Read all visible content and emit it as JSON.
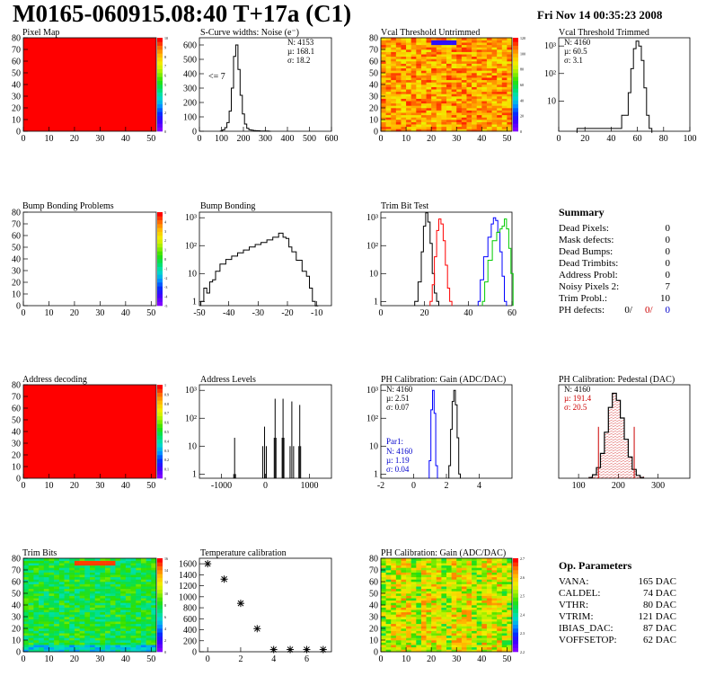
{
  "title": "M0165-060915.08:40 T+17a (C1)",
  "date": "Fri Nov 14 00:35:23 2008",
  "chart_data": [
    {
      "id": "pixel-map",
      "type": "heatmap",
      "title": "Pixel Map",
      "xlim": [
        0,
        52
      ],
      "ylim": [
        0,
        80
      ],
      "xticks": [
        "0",
        "10",
        "20",
        "30",
        "40",
        "50"
      ],
      "yticks": [
        "0",
        "10",
        "20",
        "30",
        "40",
        "50",
        "60",
        "70",
        "80"
      ],
      "zticks": [
        "0",
        "1",
        "2",
        "3",
        "4",
        "5",
        "6",
        "7",
        "8",
        "9",
        "10"
      ],
      "fill": "uniform",
      "fill_color": "#ff0000"
    },
    {
      "id": "scurve",
      "type": "histogram",
      "title": "S-Curve widths: Noise (e⁻)",
      "xlim": [
        0,
        600
      ],
      "ylim": [
        0,
        650
      ],
      "xticks": [
        "0",
        "100",
        "200",
        "300",
        "400",
        "500",
        "600"
      ],
      "yticks": [
        "0",
        "100",
        "200",
        "300",
        "400",
        "500",
        "600"
      ],
      "stats": [
        "N: 4153",
        "µ: 168.1",
        "σ: 18.2"
      ],
      "annotation": "<= 7",
      "x": [
        100,
        110,
        120,
        130,
        140,
        150,
        160,
        170,
        180,
        190,
        200,
        210,
        220,
        230,
        240,
        250,
        260,
        270,
        280,
        290,
        300,
        310,
        320
      ],
      "values": [
        2,
        10,
        25,
        60,
        140,
        300,
        520,
        600,
        430,
        250,
        120,
        50,
        20,
        10,
        8,
        5,
        4,
        3,
        2,
        2,
        1,
        1,
        0
      ]
    },
    {
      "id": "vcal-untrimmed",
      "type": "heatmap",
      "title": "Vcal Threshold Untrimmed",
      "xlim": [
        0,
        52
      ],
      "ylim": [
        0,
        80
      ],
      "xticks": [
        "0",
        "10",
        "20",
        "30",
        "40",
        "50"
      ],
      "yticks": [
        "0",
        "10",
        "20",
        "30",
        "40",
        "50",
        "60",
        "70",
        "80"
      ],
      "zticks": [
        "0",
        "20",
        "40",
        "60",
        "80",
        "100",
        "120"
      ],
      "fill": "noise-hot"
    },
    {
      "id": "vcal-trimmed",
      "type": "histogram",
      "title": "Vcal Threshold Trimmed",
      "xlim": [
        0,
        100
      ],
      "log": true,
      "xticks": [
        "0",
        "20",
        "40",
        "60",
        "80",
        "100"
      ],
      "yticks": [
        "10",
        "10²",
        "10³"
      ],
      "stats": [
        "N: 4160",
        "µ: 60.5",
        "σ: 3.1"
      ],
      "x": [
        15,
        20,
        40,
        44,
        52,
        54,
        56,
        58,
        60,
        62,
        64,
        66,
        68,
        70
      ],
      "values": [
        1,
        1,
        1,
        1,
        3,
        20,
        150,
        800,
        1500,
        1000,
        300,
        30,
        3,
        1
      ]
    },
    {
      "id": "bump-problems",
      "type": "heatmap",
      "title": "Bump Bonding Problems",
      "xlim": [
        0,
        52
      ],
      "ylim": [
        0,
        80
      ],
      "xticks": [
        "0",
        "10",
        "20",
        "30",
        "40",
        "50"
      ],
      "yticks": [
        "0",
        "10",
        "20",
        "30",
        "40",
        "50",
        "60",
        "70",
        "80"
      ],
      "zticks": [
        "-5",
        "-4",
        "-3",
        "-2",
        "-1",
        "0",
        "1",
        "2",
        "3",
        "4",
        "5"
      ],
      "fill": "empty"
    },
    {
      "id": "bump-bonding",
      "type": "histogram",
      "title": "Bump Bonding",
      "xlim": [
        -50,
        -5
      ],
      "log": true,
      "xticks": [
        "-50",
        "-40",
        "-30",
        "-20",
        "-10"
      ],
      "yticks": [
        "1",
        "10",
        "10²",
        "10³"
      ],
      "x": [
        -49,
        -48,
        -47,
        -46,
        -45,
        -44,
        -42,
        -40,
        -38,
        -36,
        -34,
        -32,
        -30,
        -28,
        -26,
        -24,
        -22,
        -21,
        -20,
        -19,
        -18,
        -16,
        -14,
        -13,
        -12,
        -11,
        -10
      ],
      "values": [
        1,
        3,
        2,
        5,
        6,
        12,
        22,
        32,
        42,
        55,
        70,
        90,
        110,
        130,
        160,
        200,
        280,
        200,
        180,
        90,
        60,
        30,
        12,
        8,
        3,
        1,
        0
      ]
    },
    {
      "id": "trim-bit-test",
      "type": "histogram",
      "title": "Trim Bit Test",
      "xlim": [
        0,
        60
      ],
      "log": true,
      "xticks": [
        "0",
        "20",
        "40",
        "60"
      ],
      "yticks": [
        "1",
        "10",
        "10²",
        "10³"
      ],
      "series": [
        {
          "color": "#000000",
          "x": [
            16,
            18,
            19,
            20,
            21,
            22,
            23,
            24,
            25,
            26
          ],
          "values": [
            1,
            5,
            60,
            500,
            1500,
            700,
            120,
            10,
            2,
            1
          ]
        },
        {
          "color": "#ff0000",
          "x": [
            23,
            24,
            25,
            26,
            27,
            28,
            29,
            30,
            31,
            32
          ],
          "values": [
            1,
            4,
            40,
            350,
            900,
            600,
            150,
            20,
            3,
            1
          ]
        },
        {
          "color": "#0000ff",
          "x": [
            45,
            46,
            48,
            50,
            51,
            52,
            53,
            54,
            55,
            56,
            57
          ],
          "values": [
            1,
            6,
            40,
            200,
            600,
            1000,
            800,
            300,
            60,
            8,
            1
          ]
        },
        {
          "color": "#00cc00",
          "x": [
            47,
            48,
            50,
            52,
            54,
            55,
            56,
            57,
            58,
            59,
            60
          ],
          "values": [
            1,
            5,
            30,
            150,
            300,
            400,
            500,
            900,
            400,
            80,
            10
          ]
        }
      ]
    },
    {
      "id": "address-decoding",
      "type": "heatmap",
      "title": "Address decoding",
      "xlim": [
        0,
        52
      ],
      "ylim": [
        0,
        80
      ],
      "xticks": [
        "0",
        "10",
        "20",
        "30",
        "40",
        "50"
      ],
      "yticks": [
        "0",
        "10",
        "20",
        "30",
        "40",
        "50",
        "60",
        "70",
        "80"
      ],
      "zticks": [
        "0",
        "0.1",
        "0.2",
        "0.3",
        "0.4",
        "0.5",
        "0.6",
        "0.7",
        "0.8",
        "0.9",
        "1"
      ],
      "fill": "uniform",
      "fill_color": "#ff0000"
    },
    {
      "id": "address-levels",
      "type": "histogram",
      "title": "Address Levels",
      "xlim": [
        -1500,
        1500
      ],
      "log": true,
      "xticks": [
        "-1000",
        "0",
        "1000"
      ],
      "yticks": [
        "1",
        "10",
        "10²",
        "10³"
      ],
      "x": [
        -720,
        -700,
        -680,
        -60,
        -20,
        20,
        200,
        220,
        240,
        380,
        400,
        420,
        560,
        600,
        640,
        760,
        780,
        800
      ],
      "values": [
        1,
        20,
        1,
        10,
        50,
        10,
        20,
        500,
        20,
        20,
        500,
        20,
        10,
        400,
        10,
        10,
        300,
        10
      ]
    },
    {
      "id": "ph-gain",
      "type": "histogram",
      "title": "PH Calibration: Gain (ADC/DAC)",
      "xlim": [
        -2,
        6
      ],
      "log": true,
      "xticks": [
        "-2",
        "0",
        "2",
        "4"
      ],
      "yticks": [
        "1",
        "10",
        "10²",
        "10³"
      ],
      "stats": [
        "N: 4160",
        "µ: 2.51",
        "σ: 0.07"
      ],
      "stats2_title": "Par1:",
      "stats2": [
        "N: 4160",
        "µ: 1.19",
        "σ: 0.04"
      ],
      "series": [
        {
          "color": "#000000",
          "x": [
            2.2,
            2.3,
            2.4,
            2.5,
            2.6,
            2.7,
            2.8
          ],
          "values": [
            2,
            40,
            400,
            1000,
            300,
            20,
            1
          ]
        },
        {
          "color": "#0000ff",
          "x": [
            1.0,
            1.1,
            1.2,
            1.3,
            1.4
          ],
          "values": [
            3,
            200,
            1000,
            150,
            2
          ]
        }
      ]
    },
    {
      "id": "ph-pedestal",
      "type": "histogram",
      "title": "PH Calibration: Pedestal (DAC)",
      "xlim": [
        50,
        380
      ],
      "xticks": [
        "100",
        "200",
        "300"
      ],
      "stats": [
        "N: 4160",
        "µ: 191.4",
        "σ: 20.5"
      ],
      "fit_limits": [
        150,
        240
      ],
      "x": [
        130,
        140,
        150,
        160,
        170,
        180,
        190,
        200,
        210,
        220,
        230,
        240,
        250,
        260
      ],
      "values": [
        2,
        10,
        30,
        70,
        130,
        200,
        240,
        220,
        170,
        110,
        60,
        25,
        8,
        2
      ]
    },
    {
      "id": "trim-bits",
      "type": "heatmap",
      "title": "Trim Bits",
      "xlim": [
        0,
        52
      ],
      "ylim": [
        0,
        80
      ],
      "xticks": [
        "0",
        "10",
        "20",
        "30",
        "40",
        "50"
      ],
      "yticks": [
        "0",
        "10",
        "20",
        "30",
        "40",
        "50",
        "60",
        "70",
        "80"
      ],
      "zticks": [
        "0",
        "2",
        "4",
        "6",
        "8",
        "10",
        "12",
        "14",
        "16"
      ],
      "fill": "noise-cool"
    },
    {
      "id": "temperature",
      "type": "scatter",
      "title": "Temperature calibration",
      "xlim": [
        -0.5,
        7.5
      ],
      "ylim": [
        0,
        1700
      ],
      "xticks": [
        "0",
        "2",
        "4",
        "6"
      ],
      "yticks": [
        "0",
        "200",
        "400",
        "600",
        "800",
        "1000",
        "1200",
        "1400",
        "1600"
      ],
      "x": [
        0,
        1,
        2,
        3,
        4,
        5,
        6,
        7
      ],
      "values": [
        1600,
        1320,
        880,
        420,
        40,
        40,
        40,
        40
      ]
    },
    {
      "id": "ph-gain-map",
      "type": "heatmap",
      "title": "PH Calibration: Gain (ADC/DAC)",
      "xlim": [
        0,
        52
      ],
      "ylim": [
        0,
        80
      ],
      "xticks": [
        "0",
        "10",
        "20",
        "30",
        "40",
        "50"
      ],
      "yticks": [
        "0",
        "10",
        "20",
        "30",
        "40",
        "50",
        "60",
        "70",
        "80"
      ],
      "zticks": [
        "2.2",
        "2.3",
        "2.4",
        "2.5",
        "2.6",
        "2.7"
      ],
      "fill": "noise-mid"
    }
  ],
  "summary": {
    "heading": "Summary",
    "rows": [
      {
        "label": "Dead Pixels:",
        "value": "0"
      },
      {
        "label": "Mask defects:",
        "value": "0"
      },
      {
        "label": "Dead Bumps:",
        "value": "0"
      },
      {
        "label": "Dead Trimbits:",
        "value": "0"
      },
      {
        "label": "Address Probl:",
        "value": "0"
      },
      {
        "label": "Noisy Pixels 2:",
        "value": "7"
      },
      {
        "label": "Trim Probl.:",
        "value": "10"
      }
    ],
    "ph_label": "PH defects:",
    "ph_values": [
      {
        "v": "0/",
        "color": "#000000"
      },
      {
        "v": "0/",
        "color": "#cc0000"
      },
      {
        "v": "0",
        "color": "#0000cc"
      }
    ]
  },
  "op_params": {
    "heading": "Op. Parameters",
    "rows": [
      {
        "label": "VANA:",
        "value": "165 DAC"
      },
      {
        "label": "CALDEL:",
        "value": "74 DAC"
      },
      {
        "label": "VTHR:",
        "value": "80 DAC"
      },
      {
        "label": "VTRIM:",
        "value": "121 DAC"
      },
      {
        "label": "IBIAS_DAC:",
        "value": "87 DAC"
      },
      {
        "label": "VOFFSETOP:",
        "value": "62 DAC"
      }
    ]
  }
}
